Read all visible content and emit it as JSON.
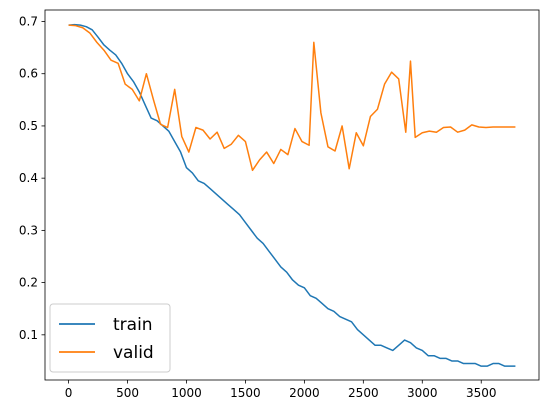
{
  "chart_data": {
    "type": "line",
    "title": "",
    "xlabel": "",
    "ylabel": "",
    "xlim": [
      -200,
      3990
    ],
    "ylim": [
      0.0135,
      0.722
    ],
    "x_ticks": [
      0,
      500,
      1000,
      1500,
      2000,
      2500,
      3000,
      3500
    ],
    "y_ticks": [
      0.1,
      0.2,
      0.3,
      0.4,
      0.5,
      0.6,
      0.7
    ],
    "grid": false,
    "legend": {
      "position": "lower-left"
    },
    "series": [
      {
        "name": "train",
        "color": "#1f77b4",
        "x": [
          0,
          50,
          100,
          150,
          200,
          250,
          300,
          350,
          400,
          450,
          500,
          550,
          600,
          650,
          700,
          750,
          800,
          850,
          900,
          950,
          1000,
          1050,
          1100,
          1150,
          1200,
          1250,
          1300,
          1350,
          1400,
          1450,
          1500,
          1550,
          1600,
          1650,
          1700,
          1750,
          1800,
          1850,
          1900,
          1950,
          2000,
          2050,
          2100,
          2150,
          2200,
          2250,
          2300,
          2350,
          2400,
          2450,
          2500,
          2550,
          2600,
          2650,
          2700,
          2750,
          2800,
          2850,
          2900,
          2950,
          3000,
          3050,
          3100,
          3150,
          3200,
          3250,
          3300,
          3350,
          3400,
          3450,
          3500,
          3550,
          3600,
          3650,
          3700,
          3750,
          3790
        ],
        "values": [
          0.693,
          0.694,
          0.693,
          0.69,
          0.684,
          0.67,
          0.655,
          0.645,
          0.636,
          0.62,
          0.6,
          0.585,
          0.565,
          0.54,
          0.515,
          0.51,
          0.5,
          0.49,
          0.47,
          0.45,
          0.42,
          0.41,
          0.395,
          0.39,
          0.38,
          0.37,
          0.36,
          0.35,
          0.34,
          0.33,
          0.315,
          0.3,
          0.285,
          0.275,
          0.26,
          0.245,
          0.23,
          0.22,
          0.205,
          0.195,
          0.19,
          0.175,
          0.17,
          0.16,
          0.15,
          0.145,
          0.135,
          0.13,
          0.125,
          0.11,
          0.1,
          0.09,
          0.08,
          0.08,
          0.075,
          0.07,
          0.08,
          0.09,
          0.085,
          0.075,
          0.07,
          0.06,
          0.06,
          0.055,
          0.055,
          0.05,
          0.05,
          0.045,
          0.045,
          0.045,
          0.04,
          0.04,
          0.045,
          0.045,
          0.04,
          0.04,
          0.04
        ]
      },
      {
        "name": "valid",
        "color": "#ff7f0e",
        "x": [
          0,
          60,
          120,
          180,
          240,
          300,
          360,
          420,
          480,
          540,
          600,
          660,
          720,
          780,
          840,
          900,
          960,
          1020,
          1080,
          1140,
          1200,
          1260,
          1320,
          1380,
          1440,
          1500,
          1560,
          1620,
          1680,
          1740,
          1800,
          1860,
          1920,
          1980,
          2040,
          2080,
          2140,
          2200,
          2260,
          2320,
          2380,
          2440,
          2500,
          2560,
          2620,
          2680,
          2740,
          2800,
          2860,
          2900,
          2940,
          3000,
          3060,
          3120,
          3180,
          3240,
          3300,
          3360,
          3420,
          3480,
          3540,
          3600,
          3660,
          3720,
          3790
        ],
        "values": [
          0.693,
          0.692,
          0.688,
          0.678,
          0.66,
          0.645,
          0.626,
          0.62,
          0.58,
          0.57,
          0.548,
          0.6,
          0.55,
          0.503,
          0.497,
          0.57,
          0.48,
          0.45,
          0.497,
          0.492,
          0.475,
          0.488,
          0.457,
          0.465,
          0.482,
          0.47,
          0.415,
          0.435,
          0.45,
          0.428,
          0.455,
          0.445,
          0.495,
          0.47,
          0.463,
          0.66,
          0.525,
          0.46,
          0.452,
          0.5,
          0.418,
          0.487,
          0.462,
          0.518,
          0.532,
          0.58,
          0.603,
          0.59,
          0.488,
          0.624,
          0.478,
          0.487,
          0.49,
          0.488,
          0.497,
          0.498,
          0.488,
          0.492,
          0.502,
          0.498,
          0.497,
          0.498,
          0.498,
          0.498,
          0.498
        ]
      }
    ]
  }
}
